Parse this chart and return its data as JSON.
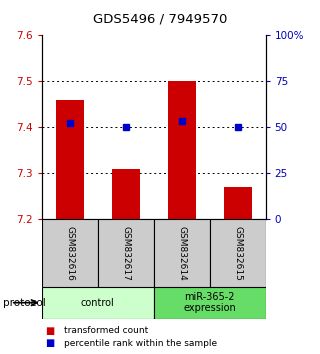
{
  "title": "GDS5496 / 7949570",
  "samples": [
    "GSM832616",
    "GSM832617",
    "GSM832614",
    "GSM832615"
  ],
  "bar_values": [
    7.46,
    7.31,
    7.5,
    7.27
  ],
  "bar_base": 7.2,
  "percentile_values": [
    7.41,
    7.4,
    7.415,
    7.4
  ],
  "ylim_left": [
    7.2,
    7.6
  ],
  "ylim_right": [
    0,
    100
  ],
  "yticks_left": [
    7.2,
    7.3,
    7.4,
    7.5,
    7.6
  ],
  "yticks_right": [
    0,
    25,
    50,
    75,
    100
  ],
  "ytick_labels_right": [
    "0",
    "25",
    "50",
    "75",
    "100%"
  ],
  "bar_color": "#cc0000",
  "dot_color": "#0000cc",
  "bar_width": 0.5,
  "groups": [
    {
      "label": "control",
      "samples": [
        0,
        1
      ],
      "color": "#ccffcc"
    },
    {
      "label": "miR-365-2\nexpression",
      "samples": [
        2,
        3
      ],
      "color": "#66dd66"
    }
  ],
  "legend_bar_label": "transformed count",
  "legend_dot_label": "percentile rank within the sample",
  "protocol_label": "protocol",
  "sample_box_color": "#cccccc",
  "axis_left_color": "#cc0000",
  "axis_right_color": "#0000bb",
  "grid_color": "#000000",
  "grid_alpha": 0.4
}
